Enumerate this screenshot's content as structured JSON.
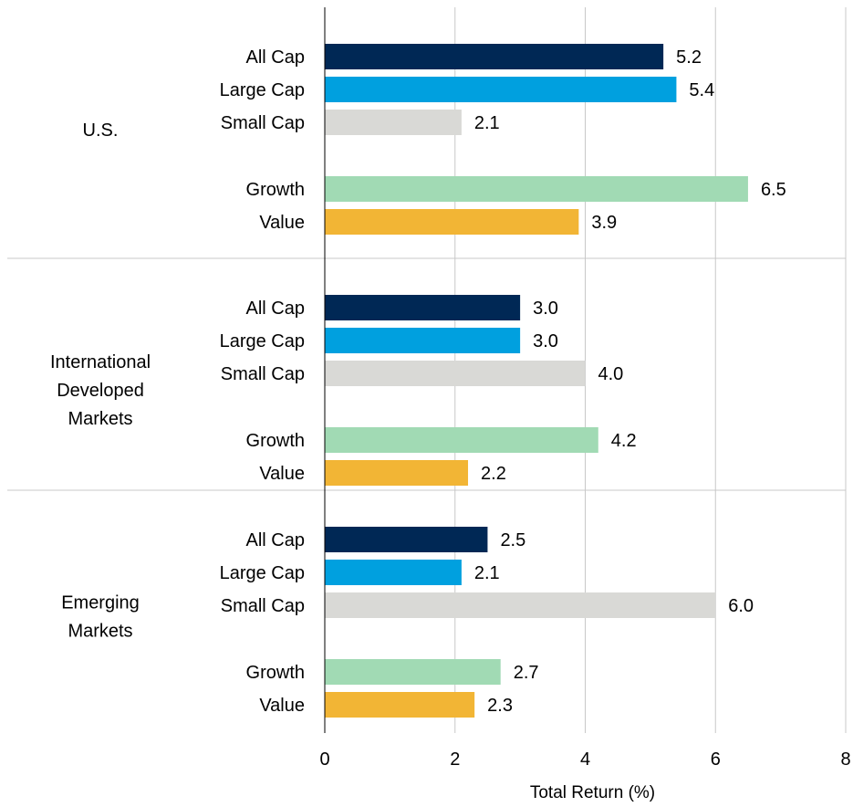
{
  "chart_data": {
    "type": "bar",
    "orientation": "horizontal",
    "xlabel": "Total  Return (%)",
    "ylabel": "",
    "title": "",
    "xlim": [
      0,
      8
    ],
    "xticks": [
      "0",
      "2",
      "4",
      "6",
      "8"
    ],
    "grid": "vertical",
    "groups": [
      {
        "name": "U.S.",
        "name_lines": [
          "U.S."
        ],
        "bars": [
          {
            "label": "All Cap",
            "value": 5.2,
            "display": "5.2",
            "color": "#002855"
          },
          {
            "label": "Large Cap",
            "value": 5.4,
            "display": "5.4",
            "color": "#00a0df"
          },
          {
            "label": "Small Cap",
            "value": 2.1,
            "display": "2.1",
            "color": "#d9d9d6"
          },
          {
            "label": "Growth",
            "value": 6.5,
            "display": "6.5",
            "color": "#a1dab4"
          },
          {
            "label": "Value",
            "value": 3.9,
            "display": "3.9",
            "color": "#f2b535"
          }
        ]
      },
      {
        "name": "International Developed Markets",
        "name_lines": [
          "International",
          "Developed",
          "Markets"
        ],
        "bars": [
          {
            "label": "All Cap",
            "value": 3.0,
            "display": "3.0",
            "color": "#002855"
          },
          {
            "label": "Large Cap",
            "value": 3.0,
            "display": "3.0",
            "color": "#00a0df"
          },
          {
            "label": "Small Cap",
            "value": 4.0,
            "display": "4.0",
            "color": "#d9d9d6"
          },
          {
            "label": "Growth",
            "value": 4.2,
            "display": "4.2",
            "color": "#a1dab4"
          },
          {
            "label": "Value",
            "value": 2.2,
            "display": "2.2",
            "color": "#f2b535"
          }
        ]
      },
      {
        "name": "Emerging Markets",
        "name_lines": [
          "Emerging",
          "Markets"
        ],
        "bars": [
          {
            "label": "All Cap",
            "value": 2.5,
            "display": "2.5",
            "color": "#002855"
          },
          {
            "label": "Large Cap",
            "value": 2.1,
            "display": "2.1",
            "color": "#00a0df"
          },
          {
            "label": "Small Cap",
            "value": 6.0,
            "display": "6.0",
            "color": "#d9d9d6"
          },
          {
            "label": "Growth",
            "value": 2.7,
            "display": "2.7",
            "color": "#a1dab4"
          },
          {
            "label": "Value",
            "value": 2.3,
            "display": "2.3",
            "color": "#f2b535"
          }
        ]
      }
    ]
  }
}
